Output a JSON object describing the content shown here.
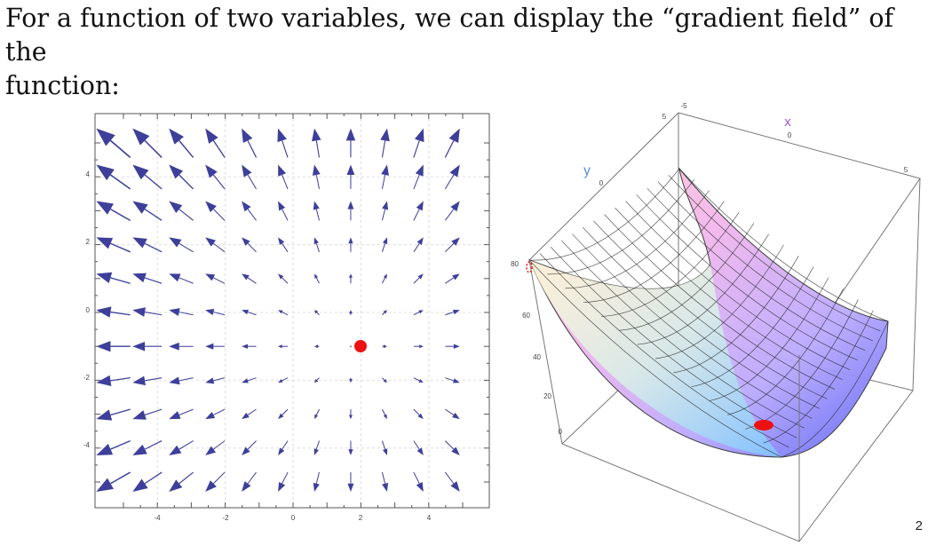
{
  "heading": {
    "line1": "For a function of two variables, we can display the “gradient field” of the",
    "line2": "function:"
  },
  "page_number": "2",
  "vector_field": {
    "x_ticks": [
      "-4",
      "-2",
      "0",
      "2",
      "4"
    ],
    "y_ticks": [
      "4",
      "2",
      "0",
      "-2",
      "-4"
    ],
    "minimum": {
      "x": 2,
      "y": -1
    },
    "arrow_color": "#3d3f9a",
    "marker_color": "#ee1111"
  },
  "surface_plot": {
    "x_axis_label": "x",
    "y_axis_label": "y",
    "x_ticks": [
      "-5",
      "0",
      "5"
    ],
    "y_ticks": [
      "5",
      "0"
    ],
    "z_ticks": [
      "80",
      "60",
      "40",
      "20",
      "0"
    ],
    "x_label_color": "#9b5bd4",
    "y_label_color": "#5b8ed6",
    "marker_color": "#ee1111"
  }
}
